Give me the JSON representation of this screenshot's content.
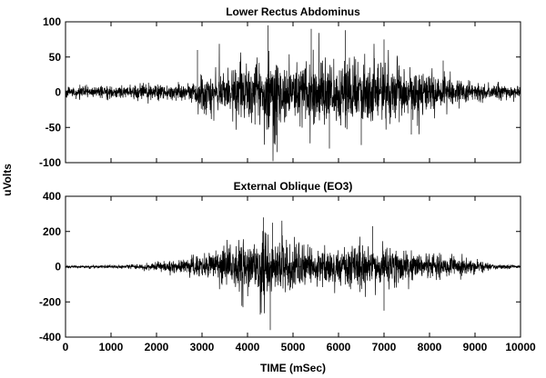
{
  "shared": {
    "ylabel": "uVolts",
    "xlabel": "TIME (mSec)"
  },
  "chart_data": [
    {
      "type": "line",
      "title": "Lower Rectus Abdominus",
      "xlim": [
        0,
        10000
      ],
      "ylim": [
        -100,
        100
      ],
      "yticks": [
        -100,
        -50,
        0,
        50,
        100
      ],
      "xticks": [],
      "grid": false,
      "legend": "none",
      "series": [
        {
          "color": "#000000",
          "sample_interval_ms": 4,
          "envelope": {
            "x": [
              0,
              1000,
              2000,
              2800,
              3000,
              4000,
              4500,
              5000,
              5500,
              6000,
              6500,
              7000,
              7500,
              8000,
              8500,
              9000,
              9500,
              10000
            ],
            "amplitude": [
              8,
              10,
              12,
              15,
              28,
              45,
              60,
              48,
              55,
              60,
              50,
              45,
              38,
              32,
              22,
              15,
              12,
              10
            ]
          },
          "peaks": {
            "x": [
              2900,
              4450,
              4650,
              5400,
              5800,
              6150,
              6500,
              7000,
              7600,
              8300
            ],
            "y": [
              60,
              95,
              -85,
              90,
              -80,
              88,
              -75,
              75,
              -60,
              45
            ]
          }
        }
      ]
    },
    {
      "type": "line",
      "title": "External Oblique (EO3)",
      "xlim": [
        0,
        10000
      ],
      "ylim": [
        -400,
        400
      ],
      "yticks": [
        -400,
        -200,
        0,
        200,
        400
      ],
      "xticks": [
        0,
        1000,
        2000,
        3000,
        4000,
        5000,
        6000,
        7000,
        8000,
        9000,
        10000
      ],
      "grid": false,
      "legend": "none",
      "series": [
        {
          "color": "#000000",
          "sample_interval_ms": 4,
          "envelope": {
            "x": [
              0,
              1000,
              1500,
              2000,
              2500,
              3000,
              3500,
              4000,
              4500,
              5000,
              5500,
              6000,
              6500,
              7000,
              7500,
              8000,
              8500,
              9000,
              9500,
              10000
            ],
            "amplitude": [
              8,
              10,
              15,
              25,
              45,
              80,
              120,
              160,
              190,
              150,
              130,
              120,
              130,
              120,
              100,
              85,
              60,
              40,
              15,
              8
            ]
          },
          "peaks": {
            "x": [
              4350,
              4500,
              4550,
              6750,
              7000,
              3900
            ],
            "y": [
              280,
              -360,
              250,
              230,
              -250,
              -230
            ]
          }
        }
      ]
    }
  ]
}
